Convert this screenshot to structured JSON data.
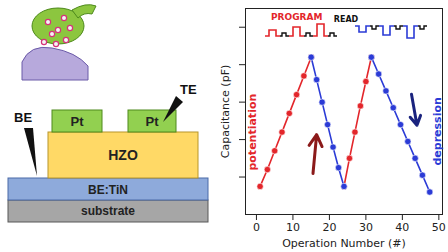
{
  "chart_data": {
    "type": "line",
    "x_label": "Operation Number (#)",
    "y_label": "Capacitance (pF)",
    "x": [
      1,
      3,
      5,
      7,
      9,
      11,
      13,
      15,
      16.5,
      18,
      19.5,
      21,
      22.5,
      24,
      25.5,
      27,
      28.5,
      30,
      31.5,
      33.5,
      35.5,
      37.5,
      39.5,
      41.5,
      43.5,
      45.5,
      47.5
    ],
    "series": [
      {
        "name": "potentiation",
        "color": "#e3262b",
        "marker": "circle",
        "line_style": "solid",
        "values": [
          1.5,
          2.4,
          3.4,
          4.4,
          5.4,
          6.4,
          7.4,
          8.4,
          null,
          null,
          null,
          null,
          null,
          1.5,
          3.0,
          4.4,
          5.8,
          7.1,
          8.4,
          null,
          null,
          null,
          null,
          null,
          null,
          null,
          null
        ]
      },
      {
        "name": "depression",
        "color": "#2b3bd6",
        "marker": "circle",
        "line_style": "solid",
        "values": [
          null,
          null,
          null,
          null,
          null,
          null,
          null,
          8.4,
          7.2,
          6.0,
          4.8,
          3.6,
          2.5,
          1.5,
          null,
          null,
          null,
          null,
          8.4,
          7.5,
          6.6,
          5.7,
          4.8,
          3.9,
          3.0,
          2.1,
          1.2
        ]
      }
    ],
    "xlim": [
      -3,
      51
    ],
    "xticks": [
      0,
      10,
      20,
      30,
      40,
      50
    ],
    "ylim": [
      0,
      11
    ],
    "yticks": [
      2,
      4,
      6,
      8,
      10
    ],
    "tick_labels": "x",
    "grid": false,
    "annotations": [
      "PROGRAM",
      "READ"
    ]
  },
  "diagram": {
    "probes": {
      "bottom": "BE",
      "top": "TE"
    },
    "layers": {
      "electrodes": [
        "Pt",
        "Pt"
      ],
      "oxide": "HZO",
      "bottom_electrode": "BE:TiN",
      "substrate": "substrate"
    }
  }
}
